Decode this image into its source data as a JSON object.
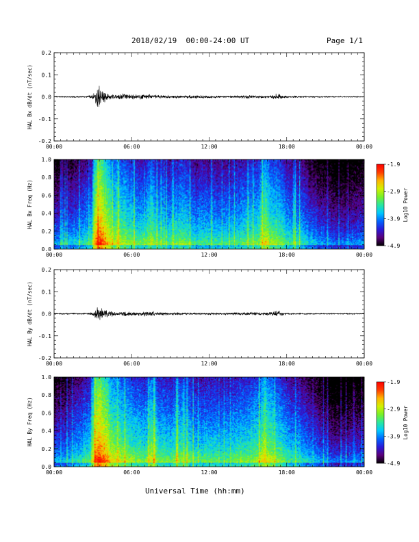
{
  "header": {
    "title": "2018/02/19  00:00-24:00 UT",
    "page": "Page 1/1"
  },
  "xlabel": "Universal Time (hh:mm)",
  "colors": {
    "trace": "#000000",
    "colormap": [
      "#000000",
      "#5a007a",
      "#2a1ad8",
      "#0064ff",
      "#00c8ff",
      "#28e6a0",
      "#78f028",
      "#d2f000",
      "#ffb400",
      "#ff3c00",
      "#ff0000"
    ]
  },
  "chart_data": [
    {
      "type": "line",
      "ylabel": "HAL Bx dB/dt (nT/sec)",
      "ylim": [
        -0.2,
        0.2
      ],
      "yticks": [
        "-0.2",
        "-0.1",
        "0.0",
        "0.1",
        "0.2"
      ],
      "xticks": [
        "00:00",
        "06:00",
        "12:00",
        "18:00",
        "00:00"
      ],
      "xlim_hours": [
        0,
        24
      ],
      "envelope": {
        "hours": [
          0,
          2.5,
          3.0,
          3.2,
          3.4,
          3.6,
          3.8,
          4.0,
          4.3,
          4.7,
          5.0,
          5.5,
          6.0,
          6.5,
          7.0,
          7.5,
          8.0,
          9.0,
          10.0,
          11.0,
          12.0,
          13.0,
          14.0,
          15.0,
          16.0,
          16.5,
          17.0,
          17.5,
          18.0,
          20.0,
          22.0,
          24.0
        ],
        "amplitude": [
          0.002,
          0.003,
          0.008,
          0.025,
          0.045,
          0.04,
          0.03,
          0.02,
          0.012,
          0.008,
          0.01,
          0.012,
          0.009,
          0.008,
          0.01,
          0.009,
          0.007,
          0.006,
          0.005,
          0.006,
          0.005,
          0.004,
          0.005,
          0.006,
          0.005,
          0.004,
          0.009,
          0.012,
          0.004,
          0.003,
          0.002,
          0.002
        ]
      }
    },
    {
      "type": "heatmap",
      "ylabel": "HAL Bx Freq (Hz)",
      "ylim": [
        0,
        1.0
      ],
      "yticks": [
        "0.0",
        "0.2",
        "0.4",
        "0.6",
        "0.8",
        "1.0"
      ],
      "xticks": [
        "00:00",
        "06:00",
        "12:00",
        "18:00",
        "00:00"
      ],
      "xlim_hours": [
        0,
        24
      ],
      "colorbar": {
        "label": "Log10 Power",
        "range": [
          -4.9,
          -1.9
        ],
        "ticks": [
          "-1.9",
          "-2.9",
          "-3.9",
          "-4.9"
        ]
      },
      "activity": {
        "hours": [
          0,
          1,
          2,
          2.9,
          3.1,
          3.5,
          4.0,
          4.5,
          5.0,
          5.5,
          6.0,
          7.0,
          7.5,
          8.0,
          9.0,
          10.0,
          11.0,
          12.0,
          13.0,
          14.0,
          15.0,
          15.8,
          16.3,
          16.8,
          17.2,
          18.0,
          19.0,
          20.0,
          22.0,
          24.0
        ],
        "log_power": [
          -4.0,
          -3.9,
          -3.7,
          -3.5,
          -2.7,
          -2.3,
          -2.6,
          -3.0,
          -3.1,
          -3.2,
          -3.3,
          -3.5,
          -3.1,
          -3.4,
          -3.5,
          -3.3,
          -3.6,
          -3.5,
          -3.6,
          -3.5,
          -3.4,
          -3.3,
          -2.9,
          -3.2,
          -3.2,
          -3.5,
          -3.6,
          -3.9,
          -4.2,
          -4.0
        ]
      }
    },
    {
      "type": "line",
      "ylabel": "HAL By dB/dt (nT/sec)",
      "ylim": [
        -0.2,
        0.2
      ],
      "yticks": [
        "-0.2",
        "-0.1",
        "0.0",
        "0.1",
        "0.2"
      ],
      "xticks": [
        "00:00",
        "06:00",
        "12:00",
        "18:00",
        "00:00"
      ],
      "xlim_hours": [
        0,
        24
      ],
      "envelope": {
        "hours": [
          0,
          2.5,
          3.0,
          3.2,
          3.4,
          3.6,
          3.8,
          4.0,
          4.3,
          4.7,
          5.0,
          5.5,
          6.0,
          6.5,
          7.0,
          7.5,
          8.0,
          9.0,
          10.0,
          11.0,
          12.0,
          13.0,
          14.0,
          15.0,
          16.0,
          16.5,
          17.0,
          17.3,
          17.6,
          18.0,
          20.0,
          22.0,
          24.0
        ],
        "amplitude": [
          0.002,
          0.003,
          0.008,
          0.02,
          0.04,
          0.035,
          0.025,
          0.018,
          0.01,
          0.008,
          0.008,
          0.01,
          0.008,
          0.007,
          0.009,
          0.01,
          0.007,
          0.005,
          0.005,
          0.004,
          0.004,
          0.004,
          0.005,
          0.006,
          0.005,
          0.006,
          0.012,
          0.015,
          0.008,
          0.003,
          0.002,
          0.002,
          0.002
        ]
      }
    },
    {
      "type": "heatmap",
      "ylabel": "HAL By Freq (Hz)",
      "ylim": [
        0,
        1.0
      ],
      "yticks": [
        "0.0",
        "0.2",
        "0.4",
        "0.6",
        "0.8",
        "1.0"
      ],
      "xticks": [
        "00:00",
        "06:00",
        "12:00",
        "18:00",
        "00:00"
      ],
      "xlim_hours": [
        0,
        24
      ],
      "colorbar": {
        "label": "Log10 Power",
        "range": [
          -4.9,
          -1.9
        ],
        "ticks": [
          "-1.9",
          "-2.9",
          "-3.9",
          "-4.9"
        ]
      },
      "activity": {
        "hours": [
          0,
          1,
          2,
          2.9,
          3.1,
          3.5,
          4.0,
          4.5,
          5.0,
          5.5,
          6.0,
          7.0,
          7.5,
          8.0,
          9.0,
          10.0,
          11.0,
          12.0,
          13.0,
          14.0,
          15.0,
          15.8,
          16.3,
          16.8,
          17.2,
          18.0,
          19.0,
          20.0,
          22.0,
          24.0
        ],
        "log_power": [
          -4.0,
          -3.9,
          -3.6,
          -3.4,
          -2.6,
          -2.2,
          -2.5,
          -2.9,
          -3.0,
          -3.1,
          -3.2,
          -3.4,
          -3.0,
          -3.3,
          -3.4,
          -3.2,
          -3.5,
          -3.4,
          -3.5,
          -3.4,
          -3.3,
          -3.2,
          -2.8,
          -3.1,
          -3.2,
          -3.5,
          -3.6,
          -3.9,
          -4.3,
          -4.1
        ]
      }
    }
  ]
}
